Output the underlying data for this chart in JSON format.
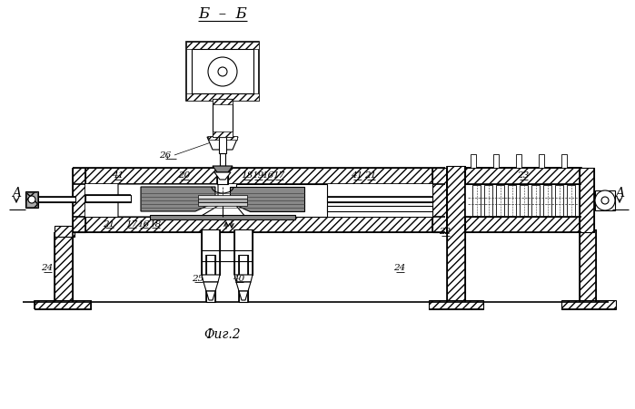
{
  "bg_color": "#ffffff",
  "line_color": "#000000",
  "title": "Б – Б",
  "caption": "Фиг.2",
  "figsize": [
    6.99,
    4.51
  ],
  "dpi": 100
}
